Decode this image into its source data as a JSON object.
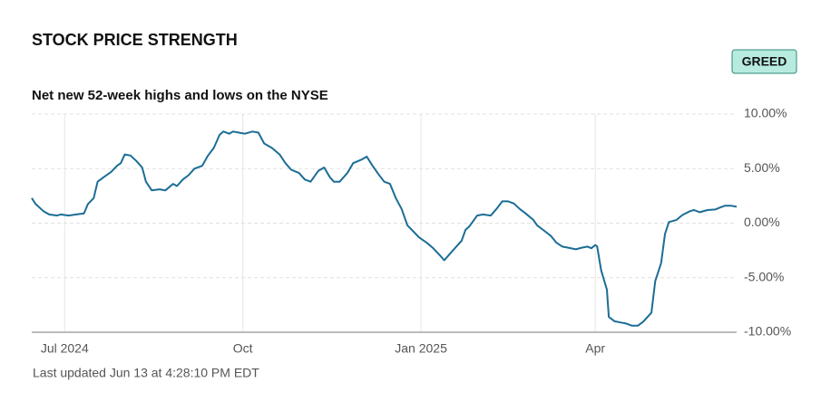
{
  "header": {
    "title": "STOCK PRICE STRENGTH",
    "badge": "GREED"
  },
  "chart_data": {
    "type": "line",
    "subtitle": "Net new 52-week highs and lows on the NYSE",
    "note": "Last updated Jun 13 at 4:28:10 PM EDT",
    "x": [
      0,
      2,
      6,
      9,
      13,
      15,
      19,
      23,
      27,
      29,
      32,
      34,
      37,
      41,
      44,
      46,
      48,
      51,
      54,
      57,
      59,
      62,
      66,
      69,
      73,
      75,
      78,
      81,
      84,
      88,
      91,
      94,
      97,
      99,
      102,
      104,
      107,
      110,
      114,
      117,
      120,
      124,
      128,
      131,
      134,
      138,
      141,
      144,
      148,
      151,
      154,
      156,
      159,
      163,
      166,
      170,
      173,
      176,
      179,
      182,
      185,
      188,
      191,
      194,
      197,
      200,
      204,
      207,
      211,
      213,
      216,
      219,
      222,
      224,
      226,
      230,
      233,
      237,
      240,
      243,
      246,
      249,
      252,
      255,
      259,
      261,
      265,
      268,
      271,
      274,
      277,
      281,
      284,
      287,
      289,
      291,
      292,
      294,
      297,
      298,
      301,
      304,
      307,
      310,
      313,
      316,
      320,
      322,
      325,
      327,
      329,
      333,
      336,
      340,
      342,
      345,
      349,
      353,
      355,
      358,
      361,
      364
    ],
    "series": [
      {
        "color": "#1b6d96",
        "values": [
          2.3,
          1.75,
          1.1,
          0.8,
          0.7,
          0.8,
          0.7,
          0.8,
          0.9,
          1.75,
          2.3,
          3.8,
          4.2,
          4.7,
          5.25,
          5.5,
          6.3,
          6.2,
          5.7,
          5.1,
          3.8,
          3.0,
          3.1,
          3.0,
          3.6,
          3.4,
          4.0,
          4.4,
          5.0,
          5.25,
          6.2,
          6.9,
          8.1,
          8.4,
          8.2,
          8.4,
          8.3,
          8.2,
          8.4,
          8.3,
          7.3,
          6.9,
          6.3,
          5.5,
          4.9,
          4.6,
          4.0,
          3.8,
          4.8,
          5.1,
          4.2,
          3.8,
          3.8,
          4.6,
          5.5,
          5.8,
          6.1,
          5.25,
          4.5,
          3.8,
          3.6,
          2.3,
          1.3,
          -0.2,
          -0.75,
          -1.3,
          -1.8,
          -2.25,
          -3.0,
          -3.4,
          -2.8,
          -2.2,
          -1.6,
          -0.6,
          -0.3,
          0.7,
          0.8,
          0.7,
          1.3,
          2.0,
          2.0,
          1.8,
          1.3,
          0.9,
          0.3,
          -0.2,
          -0.75,
          -1.15,
          -1.8,
          -2.15,
          -2.25,
          -2.4,
          -2.25,
          -2.15,
          -2.3,
          -2.0,
          -2.15,
          -4.3,
          -6.1,
          -8.6,
          -9.0,
          -9.1,
          -9.2,
          -9.4,
          -9.4,
          -9.0,
          -8.2,
          -5.3,
          -3.65,
          -1.0,
          0.1,
          0.3,
          0.75,
          1.1,
          1.2,
          1.0,
          1.2,
          1.25,
          1.4,
          1.6,
          1.6,
          1.5
        ]
      }
    ],
    "xlim": [
      0,
      364
    ],
    "xticks": [
      {
        "value": 17,
        "label": "Jul 2024"
      },
      {
        "value": 109,
        "label": "Oct"
      },
      {
        "value": 201,
        "label": "Jan 2025"
      },
      {
        "value": 291,
        "label": "Apr"
      }
    ],
    "ylim": [
      -10,
      10
    ],
    "yticks": [
      {
        "value": 10,
        "label": "10.00%"
      },
      {
        "value": 5,
        "label": "5.00%"
      },
      {
        "value": 0,
        "label": "0.00%"
      },
      {
        "value": -5,
        "label": "-5.00%"
      },
      {
        "value": -10,
        "label": "-10.00%"
      }
    ],
    "grid": true
  }
}
